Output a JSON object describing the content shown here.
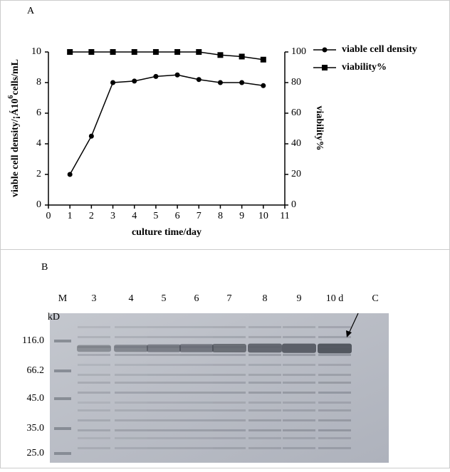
{
  "chart_data": {
    "type": "line",
    "panel_label": "A",
    "x": [
      1,
      2,
      3,
      4,
      5,
      6,
      7,
      8,
      9,
      10
    ],
    "xlim": [
      0,
      11
    ],
    "xticks": [
      0,
      1,
      2,
      3,
      4,
      5,
      6,
      7,
      8,
      9,
      10,
      11
    ],
    "ylim": [
      0,
      10
    ],
    "yticks": [
      0,
      2,
      4,
      6,
      8,
      10
    ],
    "y2lim": [
      0,
      100
    ],
    "y2ticks": [
      0,
      20,
      40,
      60,
      80,
      100
    ],
    "xlabel": "culture time/day",
    "ylabel": {
      "text": "viable cell density/¡Á10",
      "sup": "6",
      "unit": "cells/mL"
    },
    "y2label": "viability%",
    "legend": "right",
    "series": [
      {
        "name": "viable cell density",
        "color": "#000000",
        "marker": "circle",
        "values": [
          2,
          4.5,
          8,
          8.1,
          8.4,
          8.5,
          8.2,
          8.0,
          8.0,
          7.8
        ]
      },
      {
        "name": "viability%",
        "color": "#000000",
        "marker": "square",
        "axis": "y2",
        "values": [
          100,
          100,
          100,
          100,
          100,
          100,
          100,
          98,
          97,
          95
        ]
      }
    ]
  },
  "gel": {
    "panel_label": "B",
    "unit": "kD",
    "lanes": [
      "M",
      "3",
      "4",
      "5",
      "6",
      "7",
      "8",
      "9",
      "10 d",
      "C"
    ],
    "markers": [
      "116.0",
      "66.2",
      "45.0",
      "35.0",
      "25.0"
    ]
  }
}
